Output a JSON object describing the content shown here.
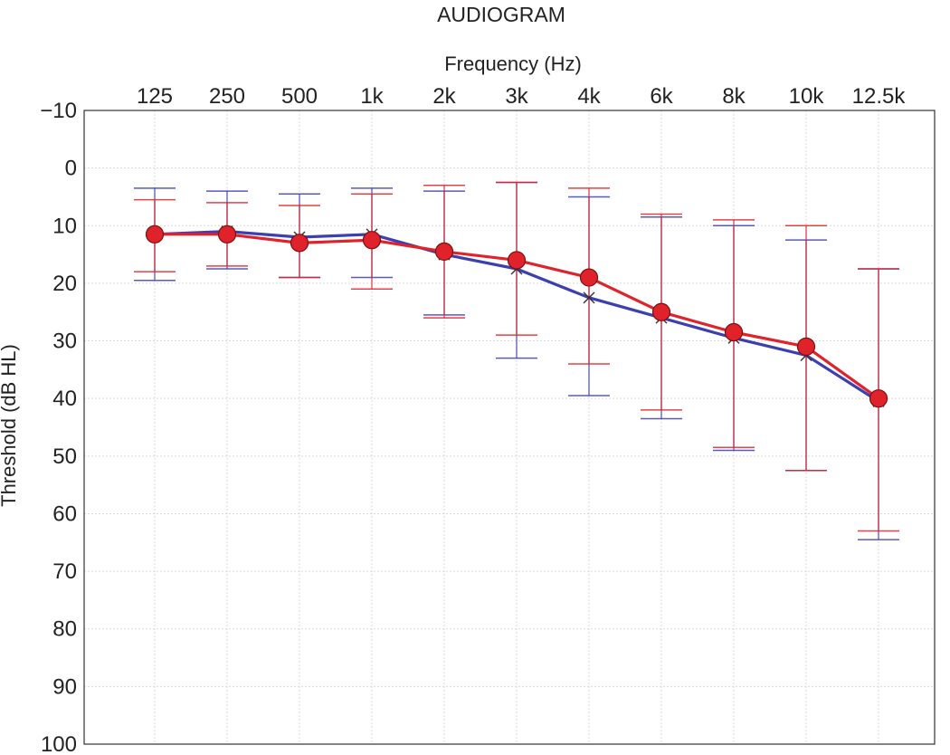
{
  "chart_data": {
    "type": "line",
    "title": "AUDIOGRAM",
    "xlabel": "Frequency (Hz)",
    "ylabel": "Threshold (dB HL)",
    "categories": [
      "125",
      "250",
      "500",
      "1k",
      "2k",
      "3k",
      "4k",
      "6k",
      "8k",
      "10k",
      "12.5k"
    ],
    "y_ticks": [
      "−10",
      "0",
      "10",
      "20",
      "30",
      "40",
      "50",
      "60",
      "70",
      "80",
      "90",
      "100"
    ],
    "ylim": [
      -10,
      100
    ],
    "y_inverted": true,
    "x_axis_position": "top",
    "grid": true,
    "series": [
      {
        "color": "#3b3fb0",
        "marker": "x",
        "values": [
          11.5,
          11,
          12,
          11.5,
          15,
          17.5,
          22.5,
          26,
          29.5,
          32.5,
          40.5
        ],
        "err_low": [
          3.5,
          4,
          4.5,
          3.5,
          4,
          2.5,
          5,
          8.5,
          10,
          12.5,
          17.5
        ],
        "err_high": [
          19.5,
          17.5,
          19,
          19,
          25.5,
          33,
          39.5,
          43.5,
          49,
          52.5,
          64.5
        ]
      },
      {
        "color": "#e0232b",
        "marker": "circle",
        "values": [
          11.5,
          11.5,
          13,
          12.5,
          14.5,
          16,
          19,
          25,
          28.5,
          31,
          40
        ],
        "err_low": [
          5.5,
          6,
          6.5,
          4.5,
          3,
          2.5,
          3.5,
          8,
          9,
          10,
          17.5
        ],
        "err_high": [
          18,
          17,
          19,
          21,
          26,
          29,
          34,
          42,
          48.5,
          52.5,
          63
        ]
      }
    ]
  }
}
